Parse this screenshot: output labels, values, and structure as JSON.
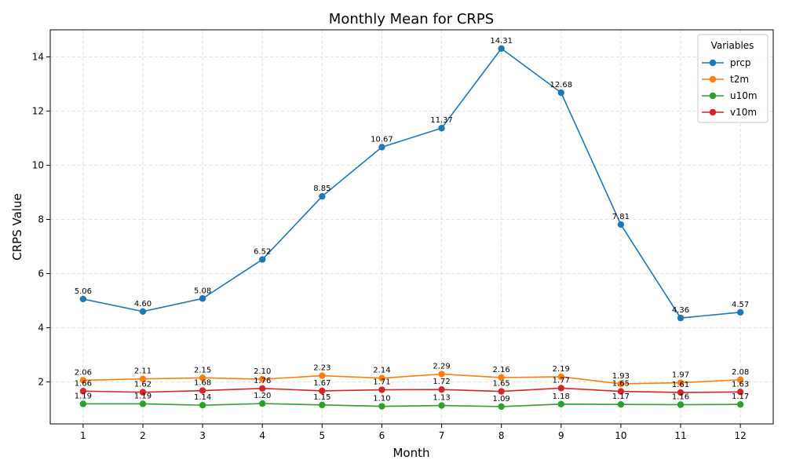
{
  "chart_data": {
    "type": "line",
    "title": "Monthly Mean for CRPS",
    "xlabel": "Month",
    "ylabel": "CRPS Value",
    "categories": [
      1,
      2,
      3,
      4,
      5,
      6,
      7,
      8,
      9,
      10,
      11,
      12
    ],
    "x_ticks": [
      1,
      2,
      3,
      4,
      5,
      6,
      7,
      8,
      9,
      10,
      11,
      12
    ],
    "y_ticks": [
      2,
      4,
      6,
      8,
      10,
      12,
      14
    ],
    "xlim": [
      0.45,
      12.55
    ],
    "ylim": [
      0.45,
      15.0
    ],
    "grid": true,
    "legend": {
      "title": "Variables",
      "placement": "top-right"
    },
    "series": [
      {
        "name": "prcp",
        "color": "#1f77b4",
        "values": [
          5.06,
          4.6,
          5.08,
          6.52,
          8.85,
          10.67,
          11.37,
          14.31,
          12.68,
          7.81,
          4.36,
          4.57
        ],
        "labels": [
          "5.06",
          "4.60",
          "5.08",
          "6.52",
          "8.85",
          "10.67",
          "11.37",
          "14.31",
          "12.68",
          "7.81",
          "4.36",
          "4.57"
        ]
      },
      {
        "name": "t2m",
        "color": "#ff7f0e",
        "values": [
          2.06,
          2.11,
          2.15,
          2.1,
          2.23,
          2.14,
          2.29,
          2.16,
          2.19,
          1.93,
          1.97,
          2.08
        ],
        "labels": [
          "2.06",
          "2.11",
          "2.15",
          "2.10",
          "2.23",
          "2.14",
          "2.29",
          "2.16",
          "2.19",
          "1.93",
          "1.97",
          "2.08"
        ]
      },
      {
        "name": "u10m",
        "color": "#2ca02c",
        "values": [
          1.19,
          1.19,
          1.14,
          1.2,
          1.15,
          1.1,
          1.13,
          1.09,
          1.18,
          1.17,
          1.16,
          1.17
        ],
        "labels": [
          "1.19",
          "1.19",
          "1.14",
          "1.20",
          "1.15",
          "1.10",
          "1.13",
          "1.09",
          "1.18",
          "1.17",
          "1.16",
          "1.17"
        ]
      },
      {
        "name": "v10m",
        "color": "#d62728",
        "values": [
          1.66,
          1.62,
          1.68,
          1.76,
          1.67,
          1.71,
          1.72,
          1.65,
          1.77,
          1.65,
          1.61,
          1.63
        ],
        "labels": [
          "1.66",
          "1.62",
          "1.68",
          "1.76",
          "1.67",
          "1.71",
          "1.72",
          "1.65",
          "1.77",
          "1.65",
          "1.61",
          "1.63"
        ]
      }
    ]
  }
}
